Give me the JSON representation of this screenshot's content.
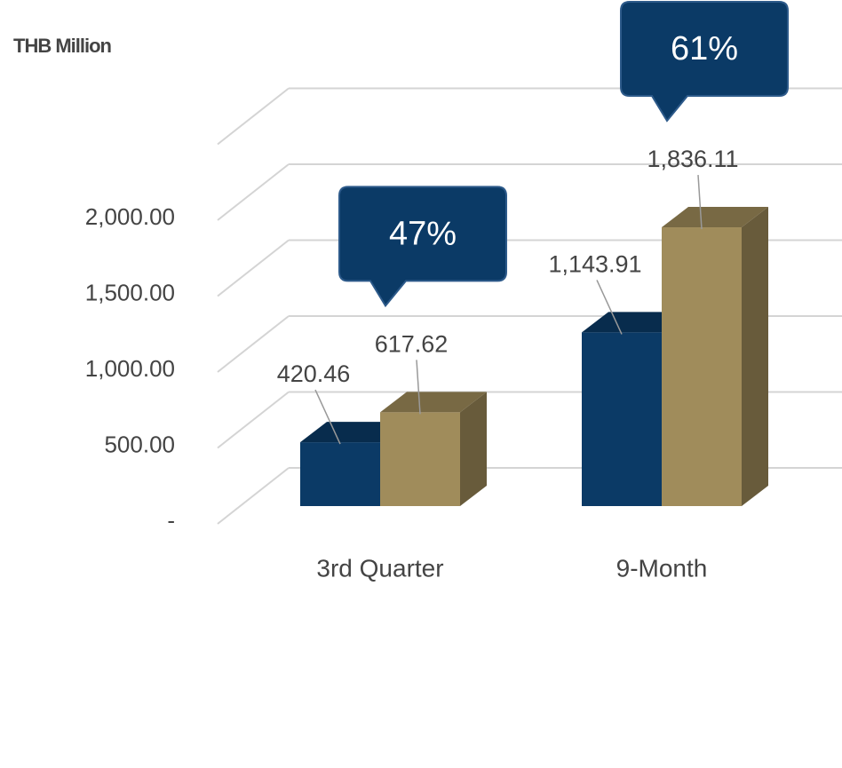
{
  "chart_data": {
    "type": "bar3d",
    "unit_label": "THB Million",
    "categories": [
      "3rd Quarter",
      "9-Month"
    ],
    "series": [
      {
        "color": "#0b3a66",
        "values": [
          420.46,
          1143.91
        ],
        "value_labels": [
          "420.46",
          "1,143.91"
        ]
      },
      {
        "color": "#a08c5b",
        "values": [
          617.62,
          1836.11
        ],
        "value_labels": [
          "617.62",
          "1,836.11"
        ]
      }
    ],
    "annotations": [
      "47%",
      "61%"
    ],
    "annotation_color": "#0b3a66",
    "ylim": [
      0,
      2500
    ],
    "yticks": [
      {
        "value": 0,
        "label": "-"
      },
      {
        "value": 500,
        "label": "500.00"
      },
      {
        "value": 1000,
        "label": "1,000.00"
      },
      {
        "value": 1500,
        "label": "1,500.00"
      },
      {
        "value": 2000,
        "label": "2,000.00"
      }
    ],
    "grid": true
  }
}
